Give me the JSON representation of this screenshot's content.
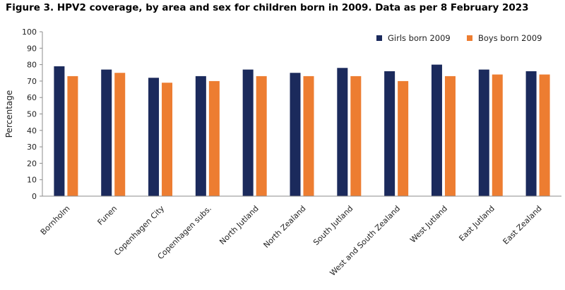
{
  "figure": {
    "title": "Figure 3. HPV2 coverage, by area and sex for children born in 2009. Data as per 8 February 2023"
  },
  "chart_data": {
    "type": "bar",
    "title": "Figure 3. HPV2 coverage, by area and sex for children born in 2009. Data as per 8 February 2023",
    "xlabel": "",
    "ylabel": "Percentage",
    "ylim": [
      0,
      100
    ],
    "yticks": [
      0,
      10,
      20,
      30,
      40,
      50,
      60,
      70,
      80,
      90,
      100
    ],
    "grid": false,
    "legend_position": "top-right",
    "categories": [
      "Bornholm",
      "Funen",
      "Copenhagen City",
      "Copenhagen subs.",
      "North Jutland",
      "North Zealand",
      "South Jutland",
      "West and South Zealand",
      "West Jutland",
      "East Jutland",
      "East Zealand"
    ],
    "series": [
      {
        "name": "Girls born 2009",
        "color": "#1b2a5c",
        "values": [
          79,
          77,
          72,
          73,
          77,
          75,
          78,
          76,
          80,
          77,
          76
        ]
      },
      {
        "name": "Boys born 2009",
        "color": "#ed7d31",
        "values": [
          73,
          75,
          69,
          70,
          73,
          73,
          73,
          70,
          73,
          74,
          74
        ]
      }
    ]
  }
}
